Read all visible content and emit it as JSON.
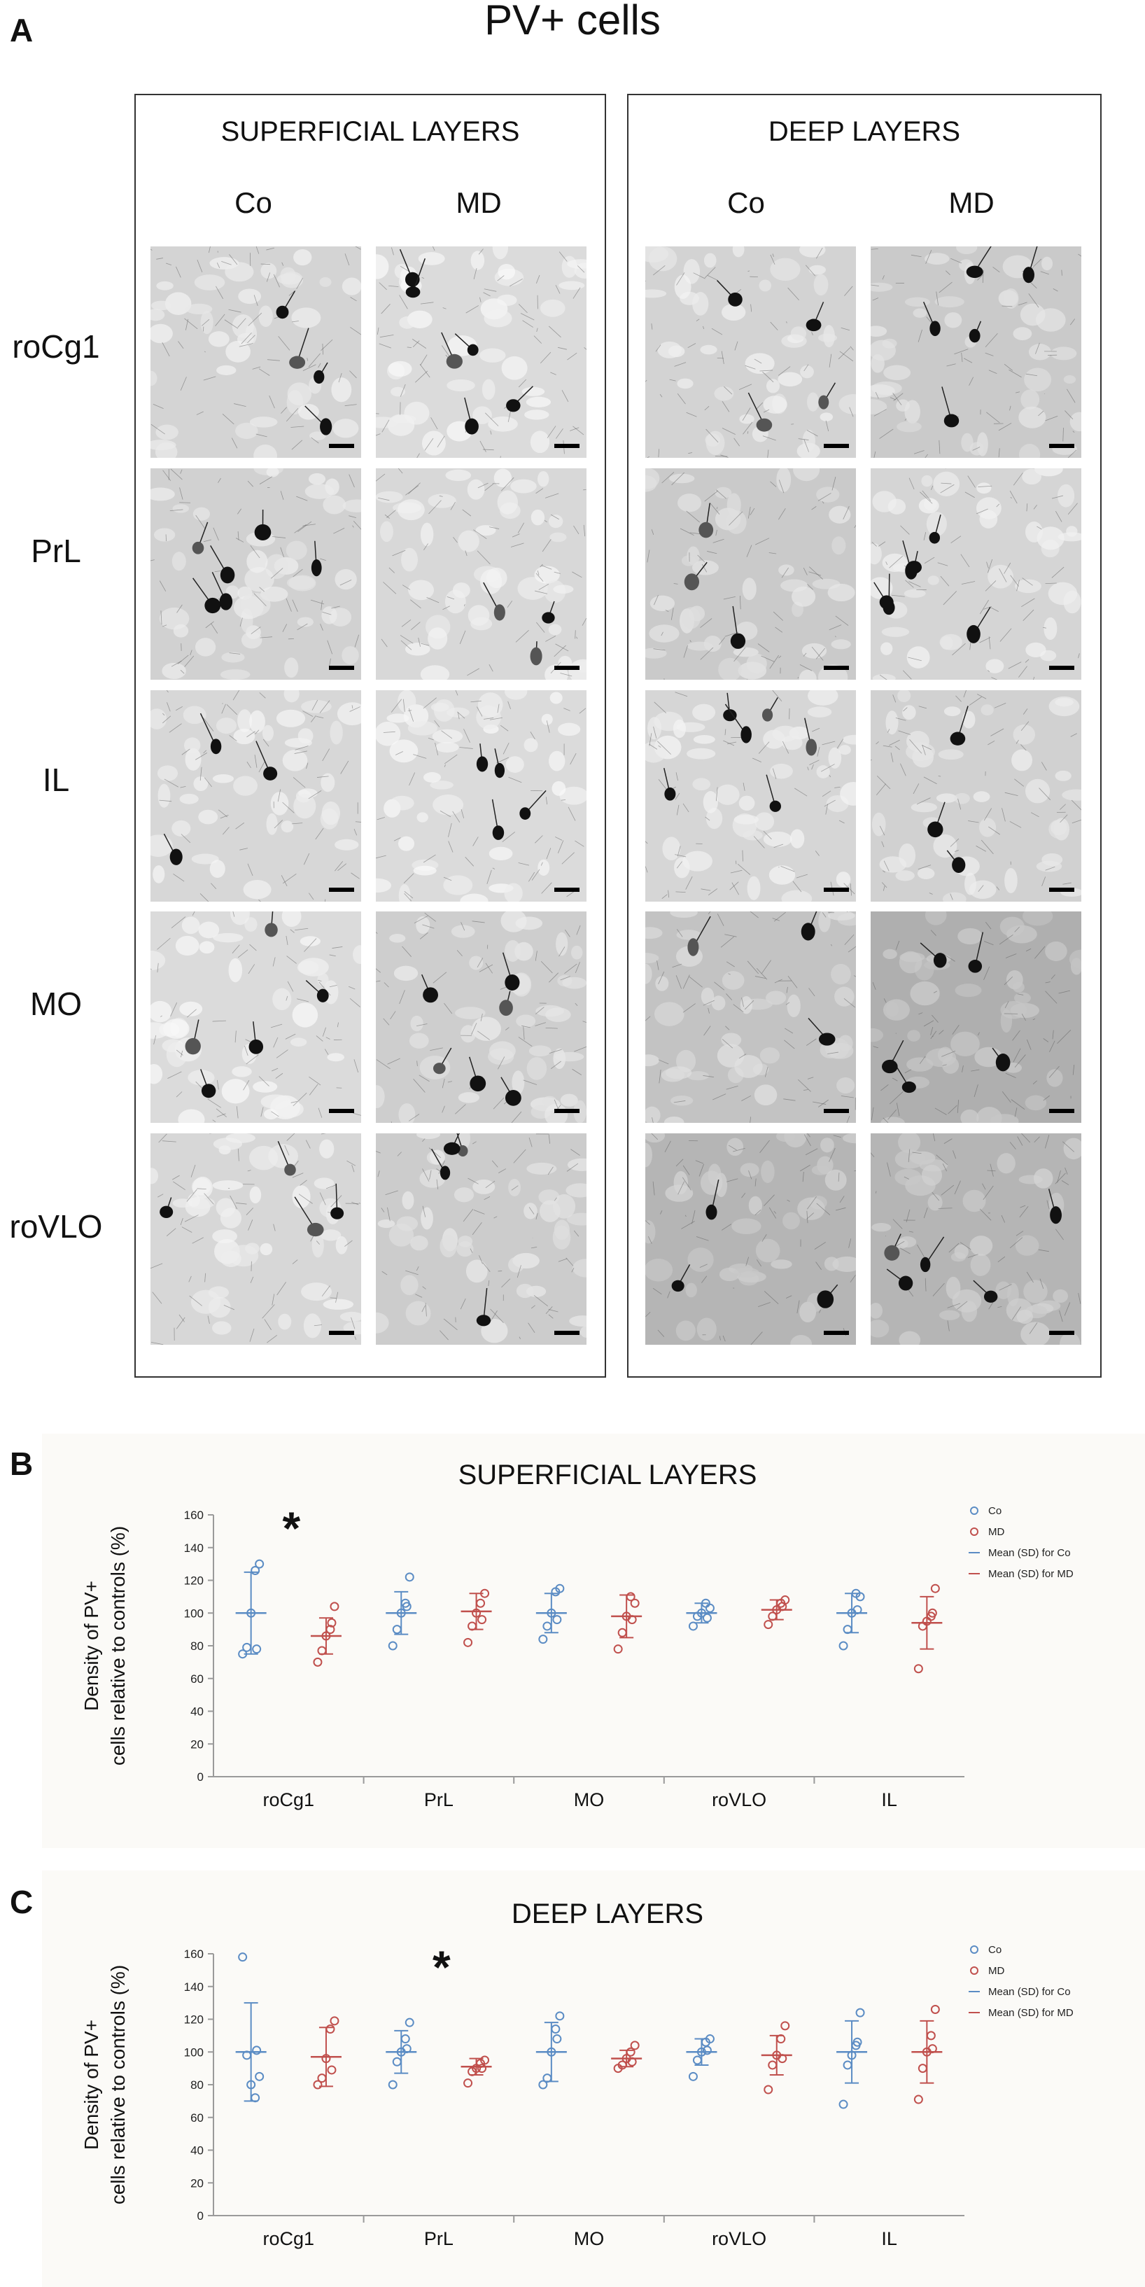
{
  "figure": {
    "panel_labels": [
      "A",
      "B",
      "C"
    ],
    "title": "PV+ cells",
    "boxes": [
      {
        "title": "SUPERFICIAL LAYERS",
        "columns": [
          "Co",
          "MD"
        ]
      },
      {
        "title": "DEEP LAYERS",
        "columns": [
          "Co",
          "MD"
        ]
      }
    ],
    "rows": [
      "roCg1",
      "PrL",
      "IL",
      "MO",
      "roVLO"
    ]
  },
  "chart_data": [
    {
      "type": "scatter",
      "title": "SUPERFICIAL LAYERS",
      "ylabel_lines": [
        "Density of PV+",
        "cells relative to controls (%)"
      ],
      "categories": [
        "roCg1",
        "PrL",
        "MO",
        "roVLO",
        "IL"
      ],
      "ylim": [
        0,
        160
      ],
      "yticks": [
        0,
        20,
        40,
        60,
        80,
        100,
        120,
        140,
        160
      ],
      "significance": {
        "category": "roCg1",
        "mark": "*"
      },
      "legend": {
        "position": "top-right",
        "entries": [
          "Co",
          "MD",
          "Mean (SD) for Co",
          "Mean (SD) for MD"
        ]
      },
      "colors": {
        "Co": "#5b8cc4",
        "MD": "#c0504d"
      },
      "series": [
        {
          "name": "Co",
          "points": [
            [
              75,
              79,
              100,
              126,
              130,
              78
            ],
            [
              80,
              90,
              100,
              106,
              122,
              104
            ],
            [
              84,
              92,
              100,
              113,
              115,
              96
            ],
            [
              92,
              98,
              100,
              106,
              103,
              97
            ],
            [
              80,
              90,
              100,
              112,
              110,
              102
            ]
          ],
          "mean": [
            100,
            100,
            100,
            100,
            100
          ],
          "sd": [
            25,
            13,
            12,
            6,
            12
          ]
        },
        {
          "name": "MD",
          "points": [
            [
              70,
              77,
              86,
              90,
              104,
              94
            ],
            [
              82,
              92,
              100,
              106,
              112,
              96
            ],
            [
              78,
              88,
              98,
              110,
              106,
              96
            ],
            [
              93,
              98,
              102,
              106,
              108,
              104
            ],
            [
              66,
              92,
              95,
              98,
              115,
              100
            ]
          ],
          "mean": [
            86,
            101,
            98,
            102,
            94
          ],
          "sd": [
            11,
            11,
            13,
            6,
            16
          ]
        }
      ]
    },
    {
      "type": "scatter",
      "title": "DEEP LAYERS",
      "ylabel_lines": [
        "Density of PV+",
        "cells relative to controls (%)"
      ],
      "categories": [
        "roCg1",
        "PrL",
        "MO",
        "roVLO",
        "IL"
      ],
      "ylim": [
        0,
        160
      ],
      "yticks": [
        0,
        20,
        40,
        60,
        80,
        100,
        120,
        140,
        160
      ],
      "significance": {
        "category": "PrL",
        "mark": "*"
      },
      "legend": {
        "position": "top-right",
        "entries": [
          "Co",
          "MD",
          "Mean (SD) for Co",
          "Mean (SD) for MD"
        ]
      },
      "colors": {
        "Co": "#5b8cc4",
        "MD": "#c0504d"
      },
      "series": [
        {
          "name": "Co",
          "points": [
            [
              158,
              98,
              80,
              72,
              85,
              101
            ],
            [
              80,
              94,
              100,
              108,
              118,
              102
            ],
            [
              80,
              84,
              100,
              114,
              122,
              108
            ],
            [
              85,
              95,
              100,
              106,
              108,
              101
            ],
            [
              68,
              92,
              98,
              104,
              124,
              106
            ]
          ],
          "mean": [
            100,
            100,
            100,
            100,
            100
          ],
          "sd": [
            30,
            13,
            18,
            8,
            19
          ]
        },
        {
          "name": "MD",
          "points": [
            [
              80,
              84,
              96,
              114,
              119,
              89
            ],
            [
              81,
              88,
              90,
              93,
              95,
              90
            ],
            [
              90,
              92,
              96,
              100,
              104,
              94
            ],
            [
              77,
              92,
              98,
              108,
              116,
              96
            ],
            [
              71,
              90,
              100,
              110,
              126,
              102
            ]
          ],
          "mean": [
            97,
            91,
            96,
            98,
            100
          ],
          "sd": [
            18,
            5,
            5,
            12,
            19
          ]
        }
      ]
    }
  ]
}
